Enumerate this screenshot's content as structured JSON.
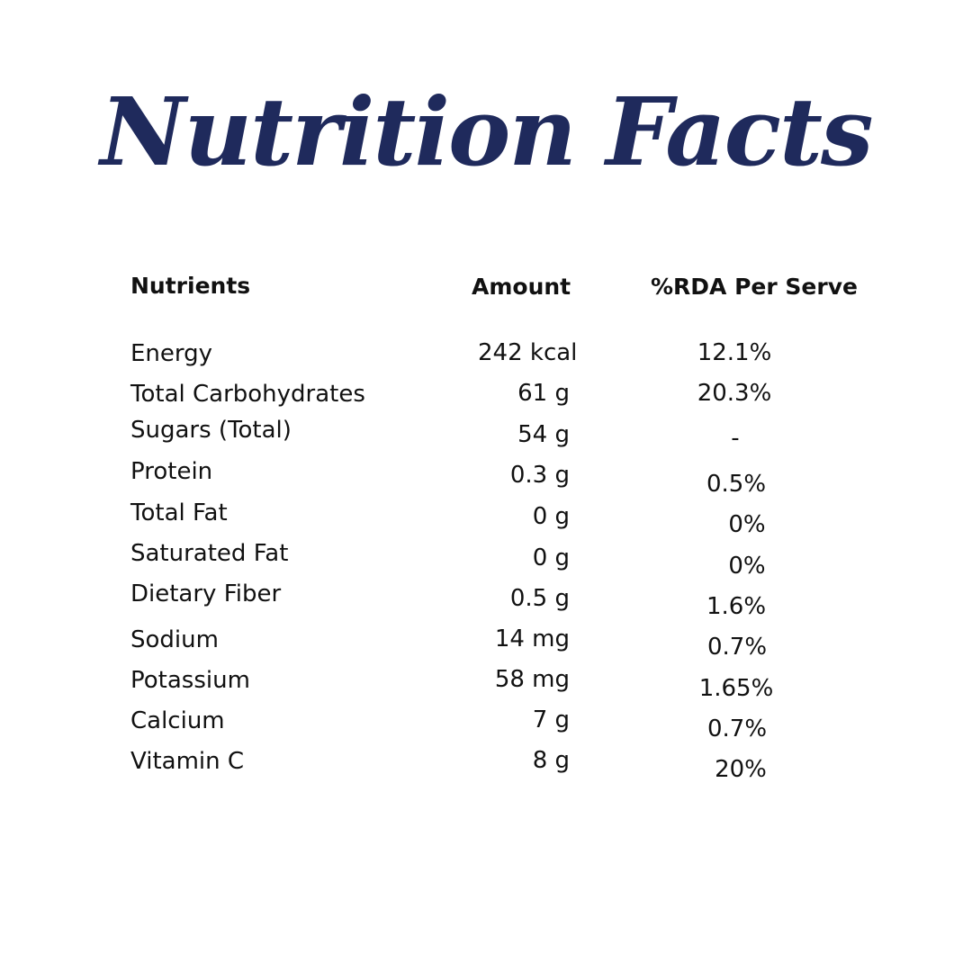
{
  "title": "Nutrition Facts",
  "headers": {
    "nutrients": "Nutrients",
    "amount": "Amount",
    "rda": "%RDA Per Serve"
  },
  "rows": [
    {
      "name": "Energy",
      "amount": "242 kcal",
      "rda": "12.1%"
    },
    {
      "name": "Total Carbohydrates",
      "amount": "61 g",
      "rda": "20.3%"
    },
    {
      "name": "Sugars (Total)",
      "amount": "54 g",
      "rda": "-"
    },
    {
      "name": "Protein",
      "amount": "0.3 g",
      "rda": "0.5%"
    },
    {
      "name": "Total Fat",
      "amount": "0 g",
      "rda": "0%"
    },
    {
      "name": "Saturated Fat",
      "amount": "0 g",
      "rda": "0%"
    },
    {
      "name": "Dietary Fiber",
      "amount": "0.5 g",
      "rda": "1.6%"
    },
    {
      "name": "Sodium",
      "amount": "14 mg",
      "rda": "0.7%"
    },
    {
      "name": "Potassium",
      "amount": "58 mg",
      "rda": "1.65%"
    },
    {
      "name": "Calcium",
      "amount": "7 g",
      "rda": "0.7%"
    },
    {
      "name": "Vitamin C",
      "amount": "8 g",
      "rda": "20%"
    }
  ],
  "colors": {
    "title": "#1f2a5c",
    "text": "#111111",
    "background": "#ffffff"
  }
}
